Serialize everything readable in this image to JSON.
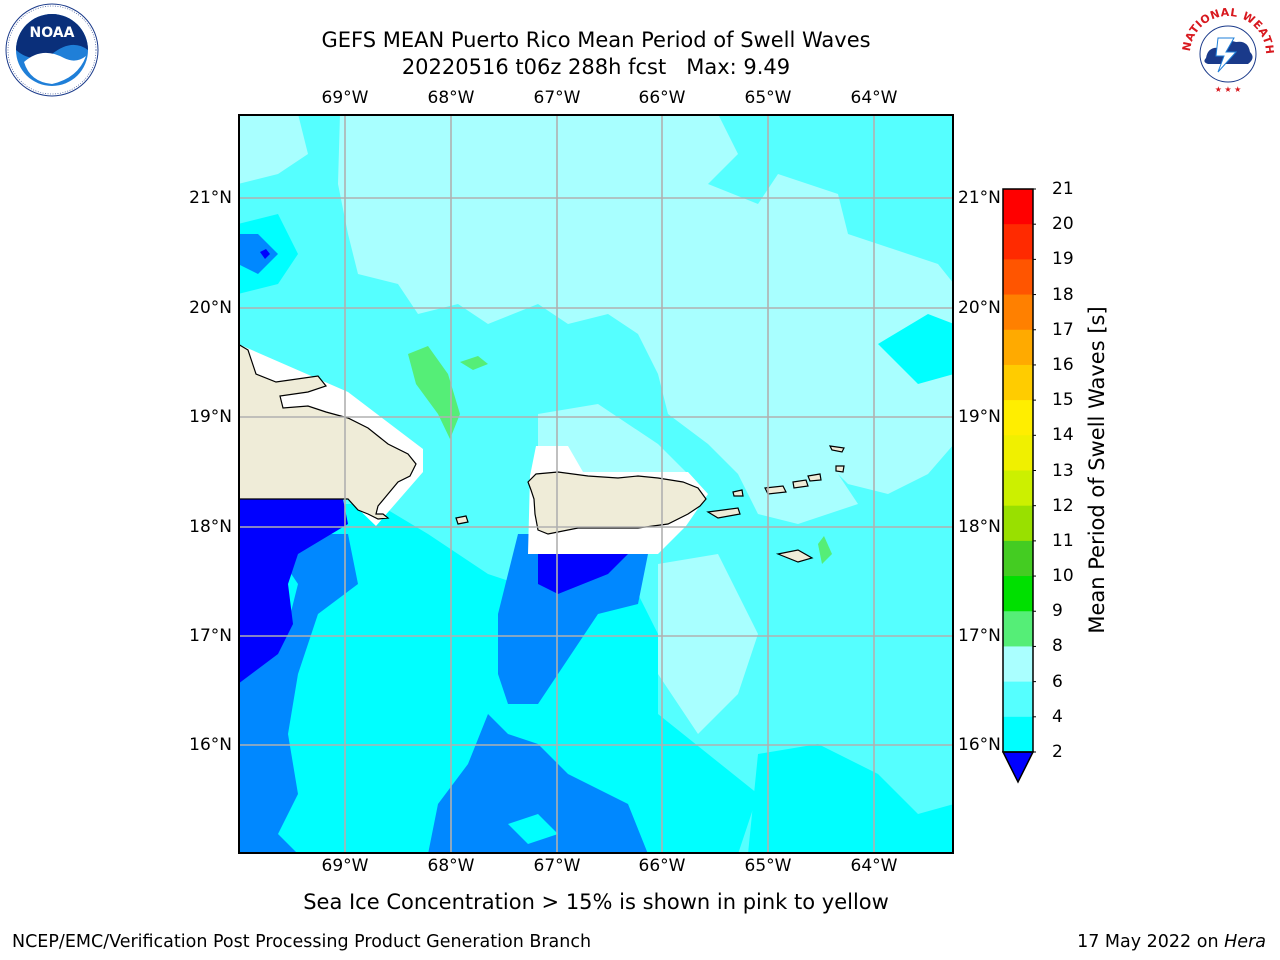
{
  "title_line1": "GEFS MEAN Puerto Rico Mean Period of Swell Waves",
  "title_line2": "20220516 t06z 288h fcst   Max: 9.49",
  "subtitle": "Sea Ice Concentration > 15% is shown in pink to yellow",
  "footer_left": "NCEP/EMC/Verification Post Processing Product Generation Branch",
  "footer_date": "17 May 2022 on",
  "footer_machine": "Hera",
  "lon_labels": [
    "69°W",
    "68°W",
    "67°W",
    "66°W",
    "65°W",
    "64°W"
  ],
  "lat_labels": [
    "21°N",
    "20°N",
    "19°N",
    "18°N",
    "17°N",
    "16°N"
  ],
  "colorbar": {
    "label": "Mean Period of Swell Waves [s]",
    "ticks": [
      "21",
      "20",
      "19",
      "18",
      "17",
      "16",
      "15",
      "14",
      "13",
      "12",
      "11",
      "10",
      "9",
      "8",
      "6",
      "4",
      "2"
    ],
    "colors": [
      "#ff0000",
      "#ff2a00",
      "#ff5500",
      "#ff8000",
      "#ffaa00",
      "#ffcc00",
      "#ffee00",
      "#f0f000",
      "#ccf000",
      "#99e000",
      "#44cc22",
      "#00e000",
      "#55ee77",
      "#aaffff",
      "#55ffff",
      "#00ffff",
      "#0088ff"
    ],
    "extend_color": "#0000ff"
  },
  "map": {
    "colors": {
      "land": "#efecd8",
      "masked": "#ffffff",
      "grid": "#b0b0b0",
      "sea_8_9": "#a8ffff",
      "sea_6_8": "#55ffff",
      "sea_4_6": "#00ffff",
      "sea_2_4": "#0088ff",
      "sea_below_2": "#0000ff",
      "sea_9_10": "#55ee77"
    }
  },
  "logos": {
    "noaa": "noaa-logo-icon",
    "nws": "nws-logo-icon",
    "noaa_text": "NOAA",
    "nws_text": "NATIONAL WEATHER SERVICE"
  }
}
